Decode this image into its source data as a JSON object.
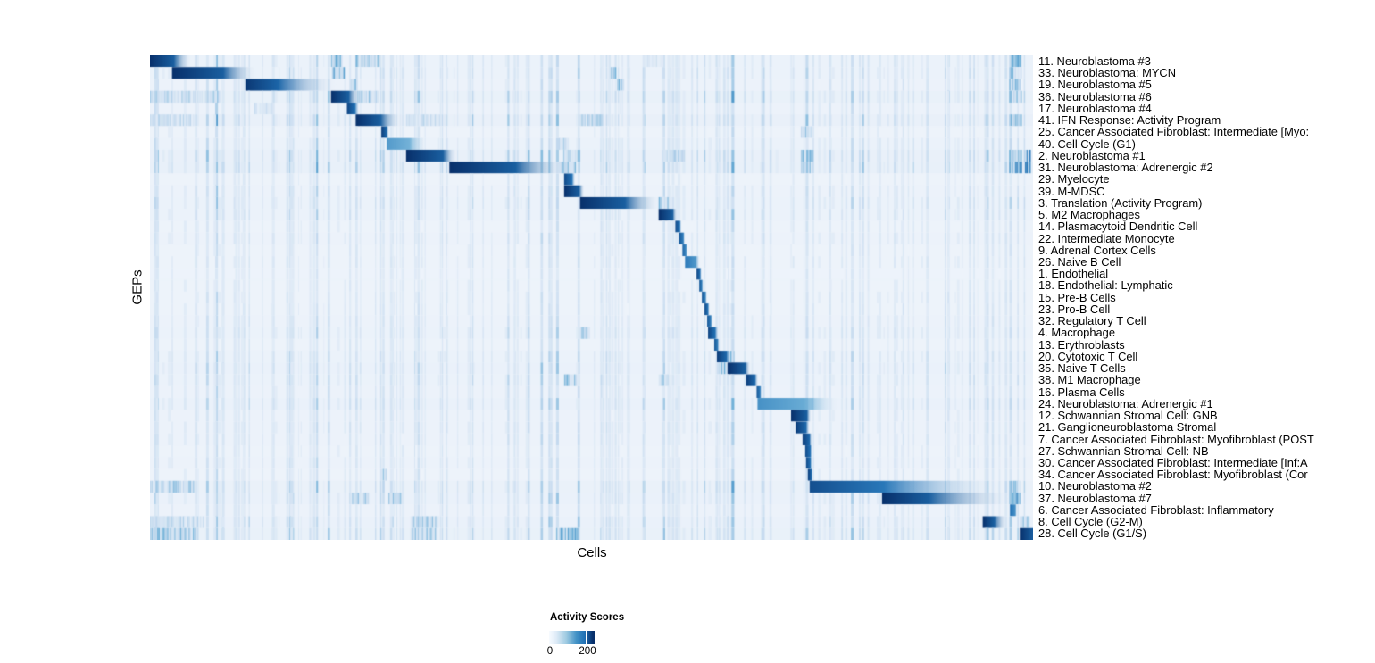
{
  "figure": {
    "axes": {
      "x_label": "Cells",
      "y_label": "GEPs"
    },
    "legend": {
      "title": "Activity Scores",
      "tick_labels": [
        "0",
        "200"
      ]
    },
    "colors": {
      "high": "#08306b",
      "mid": "#2171b5",
      "low": "#f7fbff",
      "heatmap_background": "#eff4fb"
    }
  },
  "chart_data": {
    "type": "heatmap",
    "xlabel": "Cells",
    "ylabel": "GEPs",
    "legend_title": "Activity Scores",
    "colorscale": {
      "ticks": [
        0,
        200
      ],
      "stops": [
        "#f7fbff",
        "#c6dbef",
        "#6baed6",
        "#2171b5",
        "#08306b"
      ]
    },
    "n_rows": 41,
    "description": "Diagonal blocks: each GEP row has a contiguous band of high activity-score cells (s=start fraction, c=dark core width fraction, f=fade width fraction, i=peak intensity 0-1). extras are secondary streak bands [start, width, intensity]. noise is per-row vertical-streak density.",
    "rows": [
      {
        "label": "11. Neuroblastoma #3",
        "block": {
          "s": 0.0,
          "c": 0.027,
          "f": 0.02,
          "i": 1.0
        },
        "noise": 0.45,
        "extras": [
          [
            0.205,
            0.012,
            0.35
          ],
          [
            0.233,
            0.027,
            0.3
          ],
          [
            0.56,
            0.02,
            0.12
          ],
          [
            0.973,
            0.014,
            0.35
          ]
        ]
      },
      {
        "label": "33. Neuroblastoma: MYCN",
        "block": {
          "s": 0.025,
          "c": 0.058,
          "f": 0.038,
          "i": 1.0
        },
        "noise": 0.5,
        "extras": [
          [
            0.206,
            0.014,
            0.4
          ],
          [
            0.52,
            0.007,
            0.3
          ],
          [
            0.973,
            0.014,
            0.3
          ]
        ]
      },
      {
        "label": "19. Neuroblastoma #5",
        "block": {
          "s": 0.108,
          "c": 0.037,
          "f": 0.067,
          "i": 0.97
        },
        "noise": 0.4,
        "extras": [
          [
            0.227,
            0.007,
            0.45
          ],
          [
            0.529,
            0.008,
            0.45
          ],
          [
            0.973,
            0.012,
            0.3
          ]
        ]
      },
      {
        "label": "36. Neuroblastoma #6",
        "block": {
          "s": 0.205,
          "c": 0.02,
          "f": 0.013,
          "i": 1.0
        },
        "noise": 0.7,
        "extras": [
          [
            0.0,
            0.078,
            0.22
          ],
          [
            0.233,
            0.025,
            0.28
          ],
          [
            0.973,
            0.013,
            0.3
          ]
        ]
      },
      {
        "label": "17. Neuroblastoma #4",
        "block": {
          "s": 0.223,
          "c": 0.009,
          "f": 0.005,
          "i": 0.92
        },
        "noise": 0.35,
        "extras": [
          [
            0.118,
            0.02,
            0.15
          ]
        ]
      },
      {
        "label": "41. IFN Response: Activity Program",
        "block": {
          "s": 0.233,
          "c": 0.028,
          "f": 0.022,
          "i": 1.0
        },
        "noise": 0.75,
        "extras": [
          [
            0.0,
            0.05,
            0.18
          ],
          [
            0.29,
            0.04,
            0.2
          ],
          [
            0.487,
            0.025,
            0.22
          ],
          [
            0.973,
            0.013,
            0.33
          ]
        ]
      },
      {
        "label": "25. Cancer Associated Fibroblast: Intermediate [Myo:",
        "block": {
          "s": 0.262,
          "c": 0.006,
          "f": 0.003,
          "i": 0.95
        },
        "noise": 0.3,
        "extras": [
          [
            0.737,
            0.012,
            0.25
          ]
        ]
      },
      {
        "label": "40. Cell Cycle (G1)",
        "block": {
          "s": 0.268,
          "c": 0.026,
          "f": 0.018,
          "i": 0.58
        },
        "noise": 0.45,
        "extras": [
          [
            0.463,
            0.01,
            0.2
          ]
        ]
      },
      {
        "label": "2. Neuroblastoma #1",
        "block": {
          "s": 0.29,
          "c": 0.042,
          "f": 0.015,
          "i": 1.0
        },
        "noise": 0.75,
        "extras": [
          [
            0.468,
            0.018,
            0.3
          ],
          [
            0.58,
            0.025,
            0.22
          ],
          [
            0.737,
            0.014,
            0.3
          ],
          [
            0.973,
            0.013,
            0.4
          ],
          [
            0.991,
            0.006,
            0.45
          ]
        ]
      },
      {
        "label": "31. Neuroblastoma: Adrenergic #2",
        "block": {
          "s": 0.339,
          "c": 0.075,
          "f": 0.059,
          "i": 1.0
        },
        "noise": 0.8,
        "extras": [
          [
            0.463,
            0.018,
            0.3
          ],
          [
            0.737,
            0.014,
            0.28
          ],
          [
            0.973,
            0.013,
            0.45
          ],
          [
            0.991,
            0.006,
            0.5
          ]
        ]
      },
      {
        "label": "29. Myelocyte",
        "block": {
          "s": 0.469,
          "c": 0.009,
          "f": 0.004,
          "i": 0.9
        },
        "noise": 0.25,
        "extras": []
      },
      {
        "label": "39. M-MDSC",
        "block": {
          "s": 0.469,
          "c": 0.017,
          "f": 0.006,
          "i": 1.0
        },
        "noise": 0.4,
        "extras": []
      },
      {
        "label": "3. Translation (Activity Program)",
        "block": {
          "s": 0.487,
          "c": 0.051,
          "f": 0.04,
          "i": 1.0
        },
        "noise": 0.5,
        "extras": [
          [
            0.576,
            0.01,
            0.3
          ]
        ]
      },
      {
        "label": "5. M2 Macrophages",
        "block": {
          "s": 0.576,
          "c": 0.016,
          "f": 0.005,
          "i": 1.0
        },
        "noise": 0.45,
        "extras": []
      },
      {
        "label": "14. Plasmacytoid Dendritic Cell",
        "block": {
          "s": 0.595,
          "c": 0.005,
          "f": 0.002,
          "i": 0.9
        },
        "noise": 0.3,
        "extras": []
      },
      {
        "label": "22. Intermediate Monocyte",
        "block": {
          "s": 0.599,
          "c": 0.005,
          "f": 0.002,
          "i": 0.85
        },
        "noise": 0.35,
        "extras": []
      },
      {
        "label": "9. Adrenal Cortex Cells",
        "block": {
          "s": 0.603,
          "c": 0.004,
          "f": 0.002,
          "i": 0.8
        },
        "noise": 0.25,
        "extras": []
      },
      {
        "label": "26. Naive B Cell",
        "block": {
          "s": 0.606,
          "c": 0.012,
          "f": 0.005,
          "i": 0.72
        },
        "noise": 0.3,
        "extras": []
      },
      {
        "label": "1. Endothelial",
        "block": {
          "s": 0.619,
          "c": 0.004,
          "f": 0.002,
          "i": 0.92
        },
        "noise": 0.2,
        "extras": []
      },
      {
        "label": "18. Endothelial: Lymphatic",
        "block": {
          "s": 0.622,
          "c": 0.003,
          "f": 0.002,
          "i": 0.85
        },
        "noise": 0.25,
        "extras": []
      },
      {
        "label": "15. Pre-B Cells",
        "block": {
          "s": 0.625,
          "c": 0.004,
          "f": 0.002,
          "i": 0.85
        },
        "noise": 0.3,
        "extras": []
      },
      {
        "label": "23. Pro-B Cell",
        "block": {
          "s": 0.628,
          "c": 0.004,
          "f": 0.002,
          "i": 0.9
        },
        "noise": 0.3,
        "extras": []
      },
      {
        "label": "32. Regulatory T Cell",
        "block": {
          "s": 0.631,
          "c": 0.004,
          "f": 0.003,
          "i": 0.85
        },
        "noise": 0.35,
        "extras": []
      },
      {
        "label": "4. Macrophage",
        "block": {
          "s": 0.632,
          "c": 0.008,
          "f": 0.004,
          "i": 0.92
        },
        "noise": 0.5,
        "extras": [
          [
            0.487,
            0.01,
            0.25
          ]
        ]
      },
      {
        "label": "13. Erythroblasts",
        "block": {
          "s": 0.639,
          "c": 0.004,
          "f": 0.002,
          "i": 0.85
        },
        "noise": 0.3,
        "extras": []
      },
      {
        "label": "20. Cytotoxic T Cell",
        "block": {
          "s": 0.642,
          "c": 0.011,
          "f": 0.004,
          "i": 0.95
        },
        "noise": 0.5,
        "extras": [
          [
            0.654,
            0.008,
            0.3
          ]
        ]
      },
      {
        "label": "35. Naive T Cells",
        "block": {
          "s": 0.654,
          "c": 0.02,
          "f": 0.006,
          "i": 1.0
        },
        "noise": 0.55,
        "extras": [
          [
            0.642,
            0.01,
            0.35
          ]
        ]
      },
      {
        "label": "38. M1 Macrophage",
        "block": {
          "s": 0.675,
          "c": 0.01,
          "f": 0.004,
          "i": 0.95
        },
        "noise": 0.5,
        "extras": [
          [
            0.469,
            0.013,
            0.3
          ],
          [
            0.576,
            0.01,
            0.3
          ]
        ]
      },
      {
        "label": "16. Plasma Cells",
        "block": {
          "s": 0.687,
          "c": 0.004,
          "f": 0.002,
          "i": 0.85
        },
        "noise": 0.35,
        "extras": []
      },
      {
        "label": "24. Neuroblastoma: Adrenergic #1",
        "block": {
          "s": 0.688,
          "c": 0.053,
          "f": 0.04,
          "i": 0.62
        },
        "noise": 0.55,
        "extras": [
          [
            0.737,
            0.014,
            0.35
          ]
        ]
      },
      {
        "label": "12. Schwannian Stromal Cell: GNB",
        "block": {
          "s": 0.726,
          "c": 0.018,
          "f": 0.005,
          "i": 1.0
        },
        "noise": 0.35,
        "extras": []
      },
      {
        "label": "21. Ganglioneuroblastoma Stromal",
        "block": {
          "s": 0.731,
          "c": 0.012,
          "f": 0.004,
          "i": 0.95
        },
        "noise": 0.4,
        "extras": []
      },
      {
        "label": "7. Cancer Associated Fibroblast: Myofibroblast (POST",
        "block": {
          "s": 0.739,
          "c": 0.008,
          "f": 0.003,
          "i": 0.95
        },
        "noise": 0.35,
        "extras": []
      },
      {
        "label": "27. Schwannian Stromal Cell: NB",
        "block": {
          "s": 0.742,
          "c": 0.006,
          "f": 0.002,
          "i": 0.9
        },
        "noise": 0.3,
        "extras": []
      },
      {
        "label": "30. Cancer Associated Fibroblast: Intermediate [Inf:A",
        "block": {
          "s": 0.743,
          "c": 0.005,
          "f": 0.002,
          "i": 0.9
        },
        "noise": 0.35,
        "extras": []
      },
      {
        "label": "34. Cancer Associated Fibroblast: Myofibroblast (Cor",
        "block": {
          "s": 0.745,
          "c": 0.004,
          "f": 0.002,
          "i": 0.95
        },
        "noise": 0.3,
        "extras": [
          [
            0.262,
            0.006,
            0.3
          ]
        ]
      },
      {
        "label": "10. Neuroblastoma #2",
        "block": {
          "s": 0.747,
          "c": 0.084,
          "f": 0.131,
          "i": 0.88
        },
        "noise": 0.65,
        "extras": [
          [
            0.0,
            0.05,
            0.25
          ],
          [
            0.973,
            0.012,
            0.3
          ]
        ]
      },
      {
        "label": "37. Neuroblastoma #7",
        "block": {
          "s": 0.829,
          "c": 0.053,
          "f": 0.094,
          "i": 1.0
        },
        "noise": 0.55,
        "extras": [
          [
            0.227,
            0.02,
            0.25
          ],
          [
            0.27,
            0.013,
            0.25
          ],
          [
            0.973,
            0.012,
            0.4
          ]
        ]
      },
      {
        "label": "6. Cancer Associated Fibroblast: Inflammatory",
        "block": {
          "s": 0.974,
          "c": 0.006,
          "f": 0.002,
          "i": 0.75
        },
        "noise": 0.35,
        "extras": []
      },
      {
        "label": "8. Cell Cycle (G2-M)",
        "block": {
          "s": 0.943,
          "c": 0.013,
          "f": 0.015,
          "i": 1.0
        },
        "noise": 0.6,
        "extras": [
          [
            0.0,
            0.06,
            0.2
          ],
          [
            0.295,
            0.03,
            0.25
          ],
          [
            0.985,
            0.01,
            0.3
          ]
        ]
      },
      {
        "label": "28. Cell Cycle (G1/S)",
        "block": {
          "s": 0.985,
          "c": 0.015,
          "f": 0.003,
          "i": 1.0
        },
        "noise": 0.7,
        "extras": [
          [
            0.0,
            0.055,
            0.3
          ],
          [
            0.295,
            0.03,
            0.3
          ],
          [
            0.46,
            0.025,
            0.35
          ]
        ]
      }
    ]
  }
}
